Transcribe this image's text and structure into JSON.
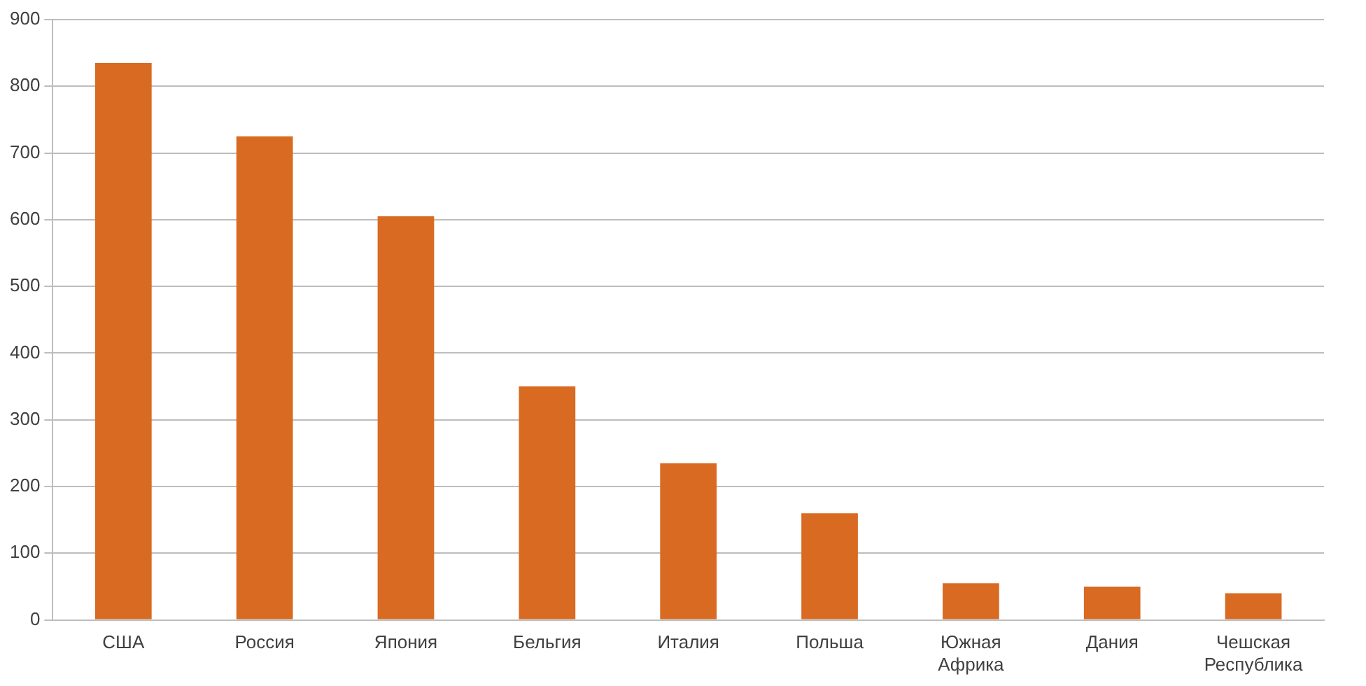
{
  "chart_data": {
    "type": "bar",
    "categories": [
      "США",
      "Россия",
      "Япония",
      "Бельгия",
      "Италия",
      "Польша",
      "Южная Африка",
      "Дания",
      "Чешская Республика"
    ],
    "values": [
      835,
      725,
      605,
      350,
      235,
      160,
      55,
      50,
      40
    ],
    "color": "#d86a22",
    "ylim": [
      0,
      900
    ],
    "yticks": [
      0,
      100,
      200,
      300,
      400,
      500,
      600,
      700,
      800,
      900
    ],
    "grid": "y"
  }
}
